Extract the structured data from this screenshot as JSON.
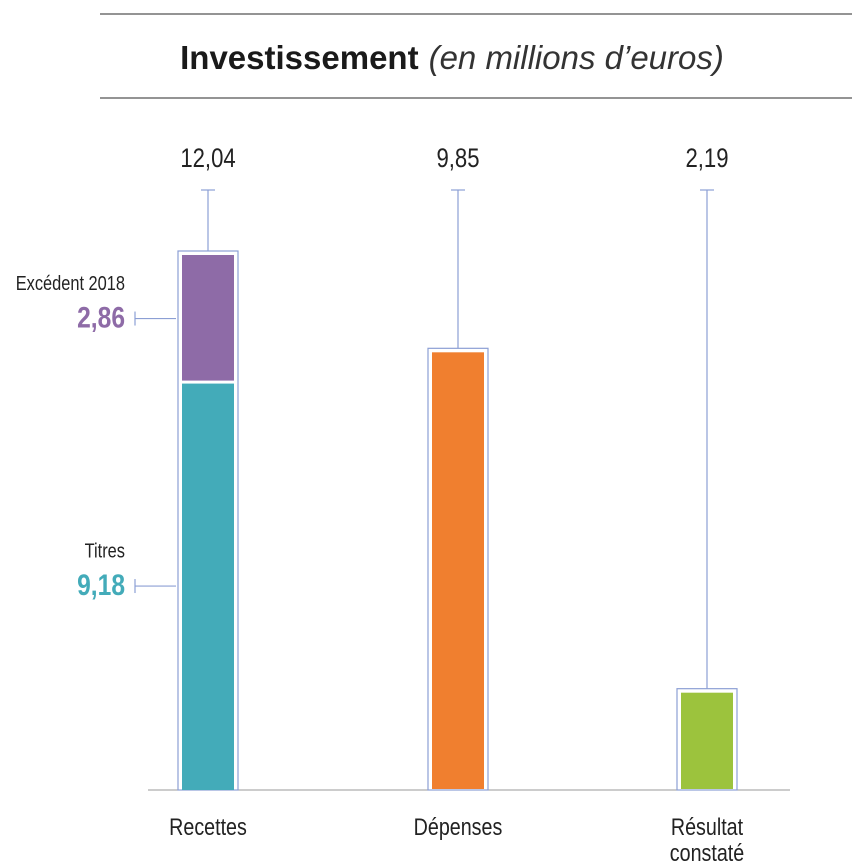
{
  "chart_data": {
    "type": "bar",
    "title": "Investissement",
    "subtitle": "(en millions d’euros)",
    "categories": [
      "Recettes",
      "Dépenses",
      "Résultat constaté"
    ],
    "values": [
      12.04,
      9.85,
      2.19
    ],
    "value_labels": [
      "12,04",
      "9,85",
      "2,19"
    ],
    "colors": [
      "#43abb9",
      "#f07f2f",
      "#9cc33d"
    ],
    "frame_color": "#8c9fd4",
    "stack": [
      {
        "name": "Titres",
        "value": 9.18,
        "value_label": "9,18",
        "color": "#43abb9"
      },
      {
        "name": "Excédent 2018",
        "value": 2.86,
        "value_label": "2,86",
        "color": "#8e6ba7"
      }
    ]
  }
}
